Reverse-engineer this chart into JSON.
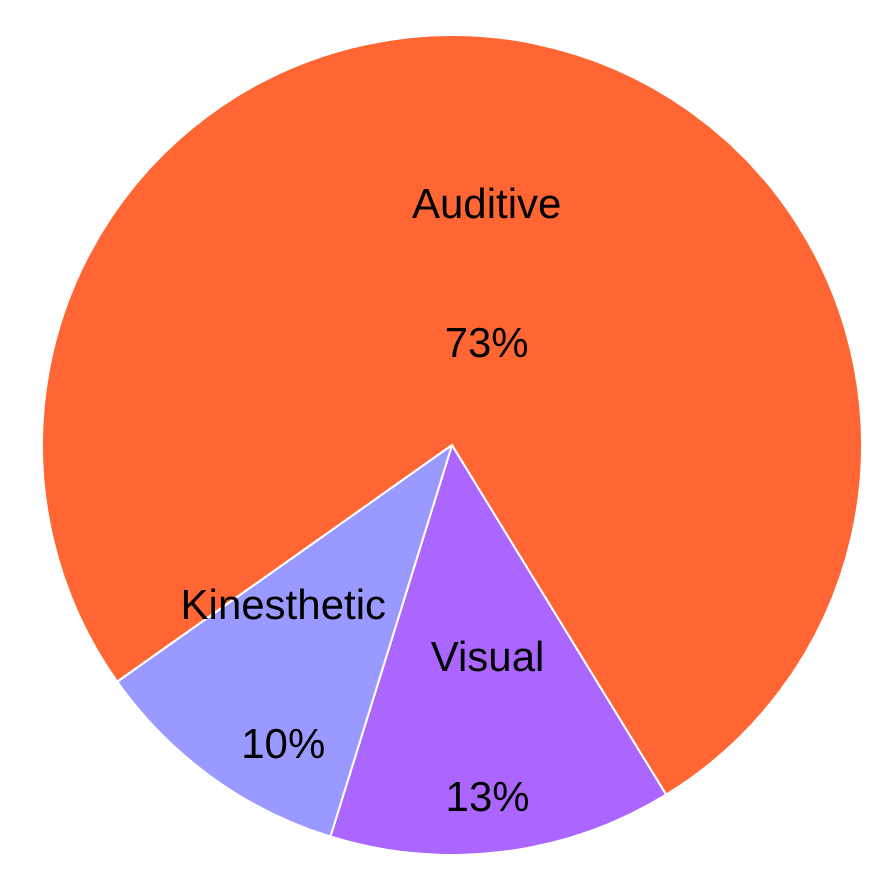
{
  "chart_data": {
    "type": "pie",
    "categories": [
      "Visual",
      "Kinesthetic",
      "Auditive"
    ],
    "values": [
      13,
      10,
      73
    ],
    "colors": [
      "#aa66ff",
      "#9999ff",
      "#ff6633"
    ],
    "value_labels": [
      "13%",
      "10%",
      "73%"
    ]
  }
}
